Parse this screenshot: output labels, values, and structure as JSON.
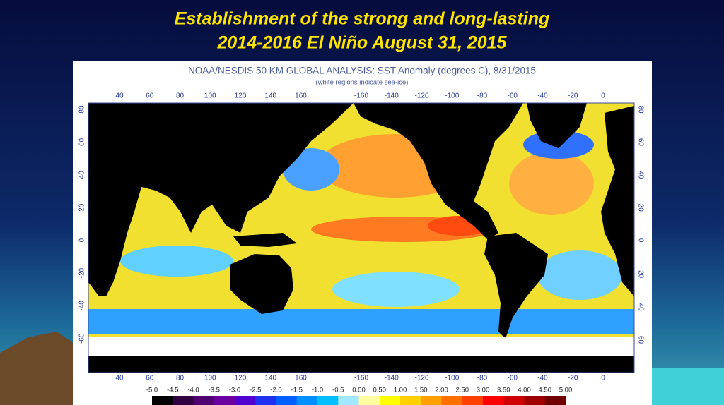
{
  "slide": {
    "title": [
      "Establishment of the strong and long-lasting",
      "2014-2016 El Niño August 31, 2015"
    ]
  },
  "map": {
    "title": "NOAA/NESDIS 50 KM GLOBAL ANALYSIS: SST Anomaly (degrees C), 8/31/2015",
    "subtitle": "(white regions indicate sea-ice)",
    "lon_labels": [
      "40",
      "60",
      "80",
      "100",
      "120",
      "140",
      "160",
      "-160",
      "-140",
      "-120",
      "-100",
      "-80",
      "-60",
      "-40",
      "-20",
      "0"
    ],
    "lat_labels": [
      "80",
      "60",
      "40",
      "20",
      "0",
      "-20",
      "-40",
      "-60"
    ],
    "colorbar": {
      "labels": [
        "-5.0",
        "-4.5",
        "-4.0",
        "-3.5",
        "-3.0",
        "-2.5",
        "-2.0",
        "-1.5",
        "-1.0",
        "-0.5",
        "0.00",
        "0.50",
        "1.00",
        "1.50",
        "2.00",
        "2.50",
        "3.00",
        "3.50",
        "4.00",
        "4.50",
        "5.00"
      ],
      "colors": [
        "#000000",
        "#300040",
        "#500070",
        "#6a00a0",
        "#5000d0",
        "#2030f0",
        "#0060ff",
        "#0090ff",
        "#00c0ff",
        "#a0e8ff",
        "#ffffa0",
        "#ffff00",
        "#ffd000",
        "#ffa000",
        "#ff7000",
        "#ff4000",
        "#ff0000",
        "#d00000",
        "#a00000",
        "#700000"
      ]
    }
  }
}
